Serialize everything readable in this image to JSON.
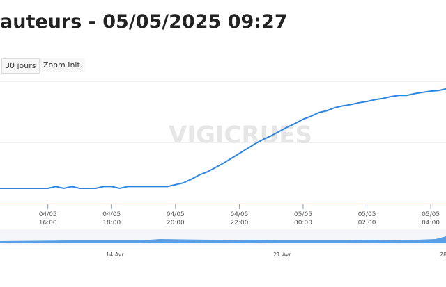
{
  "chart_data": {
    "type": "line",
    "title": "auteurs - 05/05/2025 09:27",
    "buttons": [
      "30 jours",
      "Zoom Init."
    ],
    "watermark": "VIGICRUES",
    "navigator_labels": [
      "14 Avr",
      "21 Avr",
      "28"
    ],
    "color": "#2f86e0",
    "xlim": [
      "04/05 14:30",
      "05/05 04:30"
    ],
    "ylim": [
      0,
      2
    ],
    "xticks": [
      "04/05 16:00",
      "04/05 18:00",
      "04/05 20:00",
      "04/05 22:00",
      "05/05 00:00",
      "05/05 02:00",
      "05/05 04:00"
    ],
    "x": [
      "04/05 14:30",
      "04/05 14:45",
      "04/05 15:00",
      "04/05 15:15",
      "04/05 15:30",
      "04/05 15:45",
      "04/05 16:00",
      "04/05 16:15",
      "04/05 16:30",
      "04/05 16:45",
      "04/05 17:00",
      "04/05 17:15",
      "04/05 17:30",
      "04/05 17:45",
      "04/05 18:00",
      "04/05 18:15",
      "04/05 18:30",
      "04/05 18:45",
      "04/05 19:00",
      "04/05 19:15",
      "04/05 19:30",
      "04/05 19:45",
      "04/05 20:00",
      "04/05 20:15",
      "04/05 20:30",
      "04/05 20:45",
      "04/05 21:00",
      "04/05 21:15",
      "04/05 21:30",
      "04/05 21:45",
      "04/05 22:00",
      "04/05 22:15",
      "04/05 22:30",
      "04/05 22:45",
      "04/05 23:00",
      "04/05 23:15",
      "04/05 23:30",
      "04/05 23:45",
      "05/05 00:00",
      "05/05 00:15",
      "05/05 00:30",
      "05/05 00:45",
      "05/05 01:00",
      "05/05 01:15",
      "05/05 01:30",
      "05/05 01:45",
      "05/05 02:00",
      "05/05 02:15",
      "05/05 02:30",
      "05/05 02:45",
      "05/05 03:00",
      "05/05 03:15",
      "05/05 03:30",
      "05/05 03:45",
      "05/05 04:00",
      "05/05 04:15",
      "05/05 04:30"
    ],
    "values": [
      0.25,
      0.25,
      0.25,
      0.25,
      0.25,
      0.25,
      0.25,
      0.28,
      0.25,
      0.28,
      0.25,
      0.25,
      0.25,
      0.28,
      0.28,
      0.25,
      0.28,
      0.28,
      0.28,
      0.28,
      0.28,
      0.28,
      0.31,
      0.34,
      0.4,
      0.47,
      0.52,
      0.59,
      0.66,
      0.74,
      0.82,
      0.9,
      0.98,
      1.05,
      1.11,
      1.18,
      1.25,
      1.31,
      1.38,
      1.43,
      1.49,
      1.52,
      1.57,
      1.6,
      1.62,
      1.65,
      1.67,
      1.7,
      1.72,
      1.75,
      1.77,
      1.77,
      1.8,
      1.82,
      1.84,
      1.85,
      1.88
    ]
  }
}
